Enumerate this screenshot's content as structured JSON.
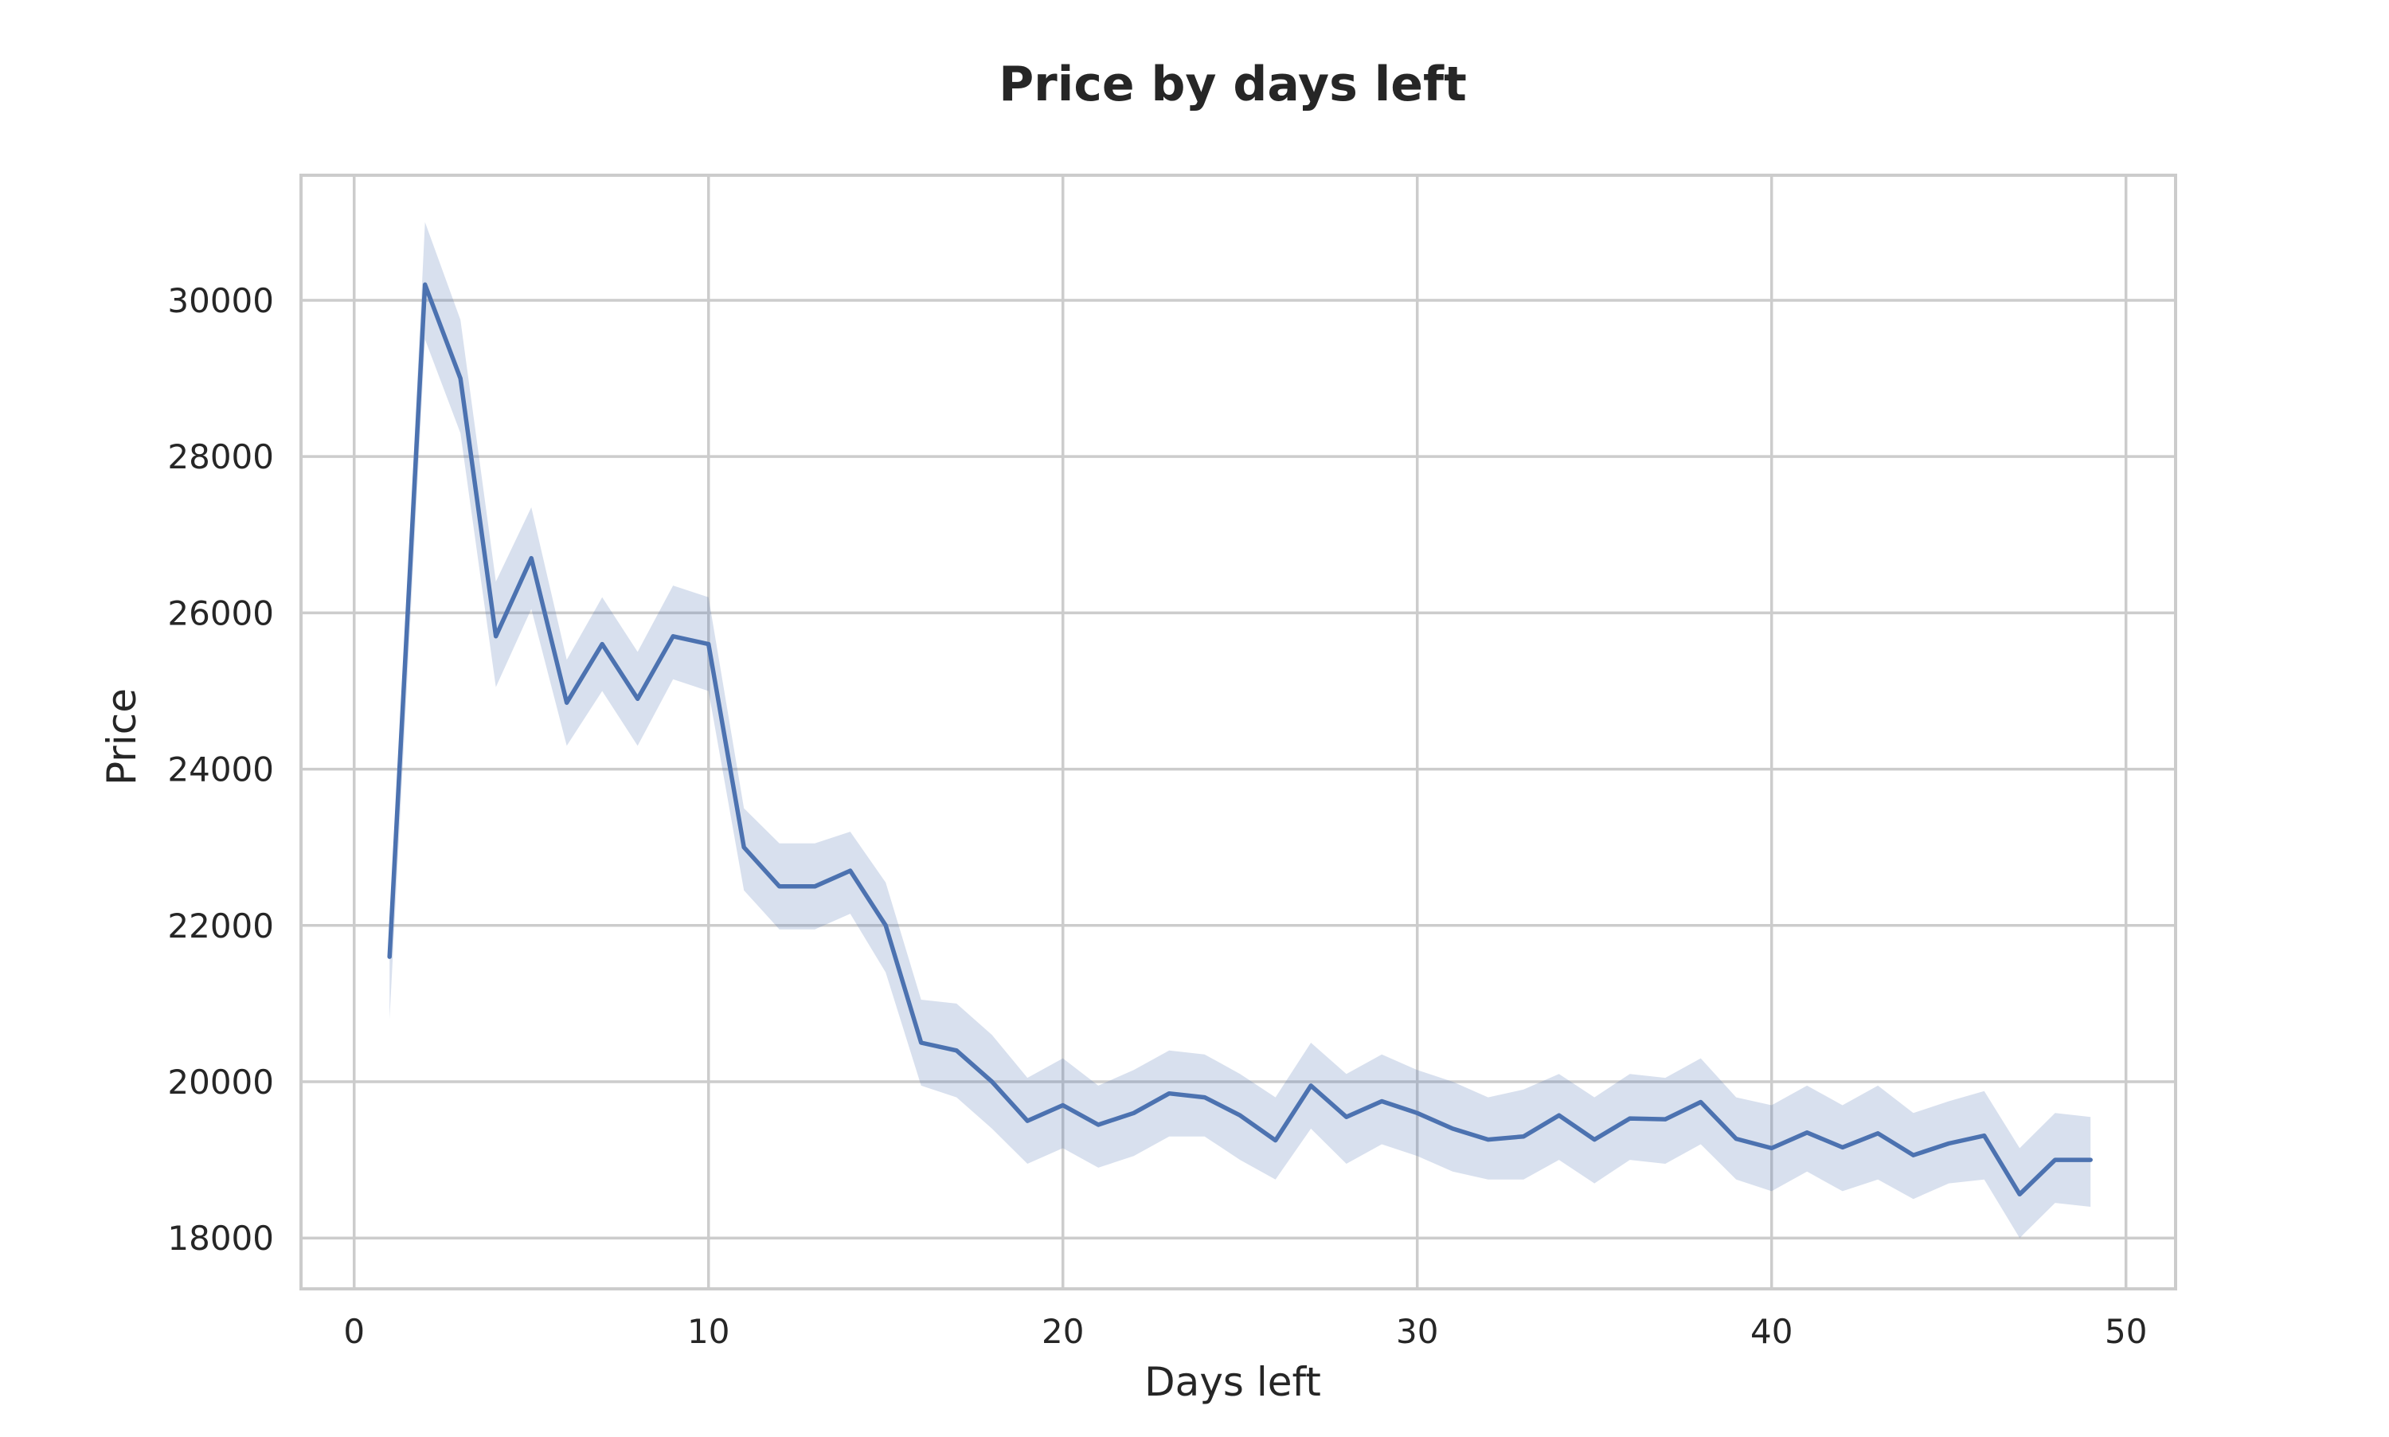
{
  "chart_data": {
    "type": "line",
    "title": "Price by days left",
    "xlabel": "Days left",
    "ylabel": "Price",
    "xlim": [
      -1.5,
      51.4
    ],
    "ylim": [
      17350,
      31600
    ],
    "grid": true,
    "x_ticks": [
      0,
      10,
      20,
      30,
      40,
      50
    ],
    "x_tick_labels": [
      "0",
      "10",
      "20",
      "30",
      "40",
      "50"
    ],
    "y_ticks": [
      18000,
      20000,
      22000,
      24000,
      26000,
      28000,
      30000
    ],
    "y_tick_labels": [
      "18000",
      "20000",
      "22000",
      "24000",
      "26000",
      "28000",
      "30000"
    ],
    "colors": {
      "line": "#4c72b0",
      "band": "#4c72b0",
      "grid": "#cccccc",
      "frame": "#cccccc"
    },
    "series": [
      {
        "x": [
          1,
          2,
          3,
          4,
          5,
          6,
          7,
          8,
          9,
          10,
          11,
          12,
          13,
          14,
          15,
          16,
          17,
          18,
          19,
          20,
          21,
          22,
          23,
          24,
          25,
          26,
          27,
          28,
          29,
          30,
          31,
          32,
          33,
          34,
          35,
          36,
          37,
          38,
          39,
          40,
          41,
          42,
          43,
          44,
          45,
          46,
          47,
          48,
          49
        ],
        "y": [
          21600,
          30200,
          29000,
          25700,
          26700,
          24850,
          25600,
          24900,
          25700,
          25600,
          23000,
          22500,
          22500,
          22700,
          22000,
          20500,
          20400,
          20000,
          19500,
          19700,
          19450,
          19600,
          19850,
          19800,
          19570,
          19250,
          19950,
          19550,
          19750,
          19600,
          19400,
          19260,
          19300,
          19570,
          19260,
          19530,
          19520,
          19740,
          19270,
          19150,
          19350,
          19160,
          19340,
          19060,
          19210,
          19310,
          18560,
          19000,
          19000
        ],
        "y_lower": [
          20800,
          29500,
          28300,
          25050,
          26050,
          24300,
          25000,
          24300,
          25150,
          25000,
          22450,
          21950,
          21950,
          22150,
          21400,
          19950,
          19800,
          19400,
          18950,
          19150,
          18900,
          19050,
          19300,
          19300,
          19000,
          18750,
          19400,
          18950,
          19200,
          19050,
          18850,
          18750,
          18750,
          19000,
          18700,
          19000,
          18950,
          19200,
          18750,
          18600,
          18850,
          18600,
          18750,
          18500,
          18700,
          18750,
          18000,
          18450,
          18400
        ],
        "y_upper": [
          21600,
          31000,
          29750,
          26400,
          27350,
          25400,
          26200,
          25500,
          26350,
          26200,
          23500,
          23050,
          23050,
          23200,
          22550,
          21050,
          21000,
          20600,
          20050,
          20300,
          19950,
          20150,
          20400,
          20350,
          20100,
          19800,
          20500,
          20100,
          20350,
          20150,
          20000,
          19800,
          19900,
          20100,
          19800,
          20100,
          20050,
          20300,
          19800,
          19700,
          19950,
          19700,
          19950,
          19600,
          19750,
          19880,
          19150,
          19600,
          19550
        ]
      }
    ]
  }
}
